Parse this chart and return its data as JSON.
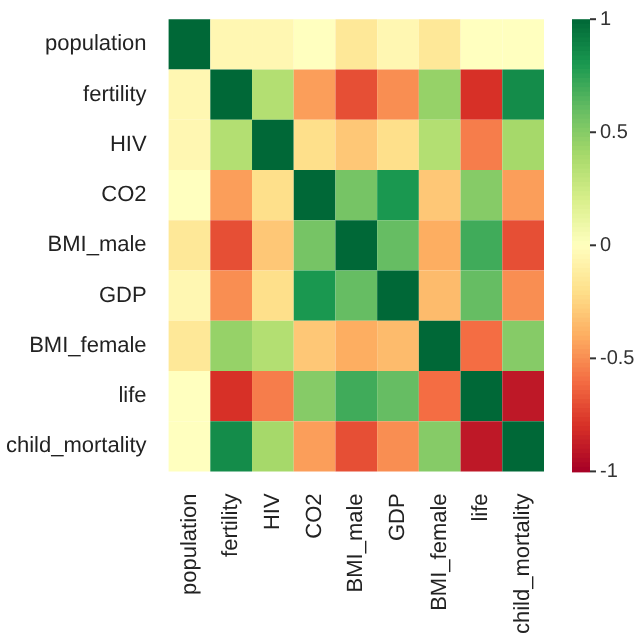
{
  "chart_data": {
    "type": "heatmap",
    "categories": [
      "population",
      "fertility",
      "HIV",
      "CO2",
      "BMI_male",
      "GDP",
      "BMI_female",
      "life",
      "child_mortality"
    ],
    "y_categories": [
      "population",
      "fertility",
      "HIV",
      "CO2",
      "BMI_male",
      "GDP",
      "BMI_female",
      "life",
      "child_mortality"
    ],
    "cells": [
      [
        1,
        -0.05,
        -0.05,
        0.0,
        -0.15,
        -0.05,
        -0.15,
        0.0,
        0.0
      ],
      [
        -0.05,
        1,
        0.35,
        -0.45,
        -0.7,
        -0.5,
        0.45,
        -0.8,
        0.85
      ],
      [
        -0.05,
        0.35,
        1,
        -0.2,
        -0.3,
        -0.2,
        0.35,
        -0.55,
        0.4
      ],
      [
        0.0,
        -0.45,
        -0.2,
        1,
        0.55,
        0.8,
        -0.3,
        0.5,
        -0.45
      ],
      [
        -0.15,
        -0.7,
        -0.3,
        0.55,
        1,
        0.6,
        -0.4,
        0.7,
        -0.7
      ],
      [
        -0.05,
        -0.5,
        -0.2,
        0.8,
        0.6,
        1,
        -0.35,
        0.6,
        -0.5
      ],
      [
        -0.15,
        0.45,
        0.35,
        -0.3,
        -0.4,
        -0.35,
        1,
        -0.6,
        0.5
      ],
      [
        0.0,
        -0.8,
        -0.55,
        0.5,
        0.7,
        0.6,
        -0.6,
        1,
        -0.9
      ],
      [
        0.0,
        0.85,
        0.4,
        -0.45,
        -0.7,
        -0.5,
        0.5,
        -0.9,
        1
      ]
    ],
    "clim": [
      -1,
      1
    ],
    "cticks": [
      -1,
      -0.5,
      0,
      0.5,
      1
    ]
  }
}
